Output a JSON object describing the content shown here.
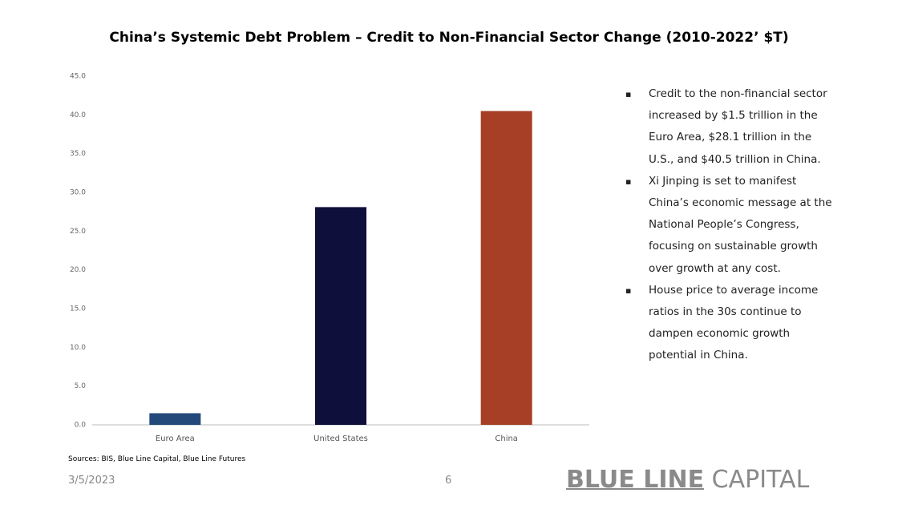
{
  "chart_data": {
    "type": "bar",
    "title": "China’s Systemic Debt Problem – Credit to Non-Financial Sector Change (2010-2022’ $T)",
    "categories": [
      "Euro Area",
      "United States",
      "China"
    ],
    "values": [
      1.5,
      28.1,
      40.5
    ],
    "colors": [
      "#22497a",
      "#0e0f3a",
      "#a63f26"
    ],
    "ylim": [
      0,
      45
    ],
    "yticks": [
      {
        "value": 0,
        "label": "0.0"
      },
      {
        "value": 5,
        "label": "5.0"
      },
      {
        "value": 10,
        "label": "10.0"
      },
      {
        "value": 15,
        "label": "15.0"
      },
      {
        "value": 20,
        "label": "20.0"
      },
      {
        "value": 25,
        "label": "25.0"
      },
      {
        "value": 30,
        "label": "30.0"
      },
      {
        "value": 35,
        "label": "35.0"
      },
      {
        "value": 40,
        "label": "40.0"
      },
      {
        "value": 45,
        "label": "45.0"
      }
    ],
    "grid": false
  },
  "bullets": [
    "Credit to the non-financial sector increased by $1.5 trillion in the Euro Area, $28.1 trillion in the U.S., and $40.5 trillion in China.",
    "Xi Jinping is set to manifest China’s economic message at the National People’s Congress, focusing on sustainable growth over growth at any cost.",
    "House price to average income ratios in the 30s continue to dampen economic growth potential in China."
  ],
  "sources": "Sources: BIS, Blue Line Capital, Blue Line Futures",
  "footer": {
    "date": "3/5/2023",
    "page": "6"
  },
  "logo": {
    "bold": "BLUE LINE",
    "light": "CAPITAL"
  }
}
